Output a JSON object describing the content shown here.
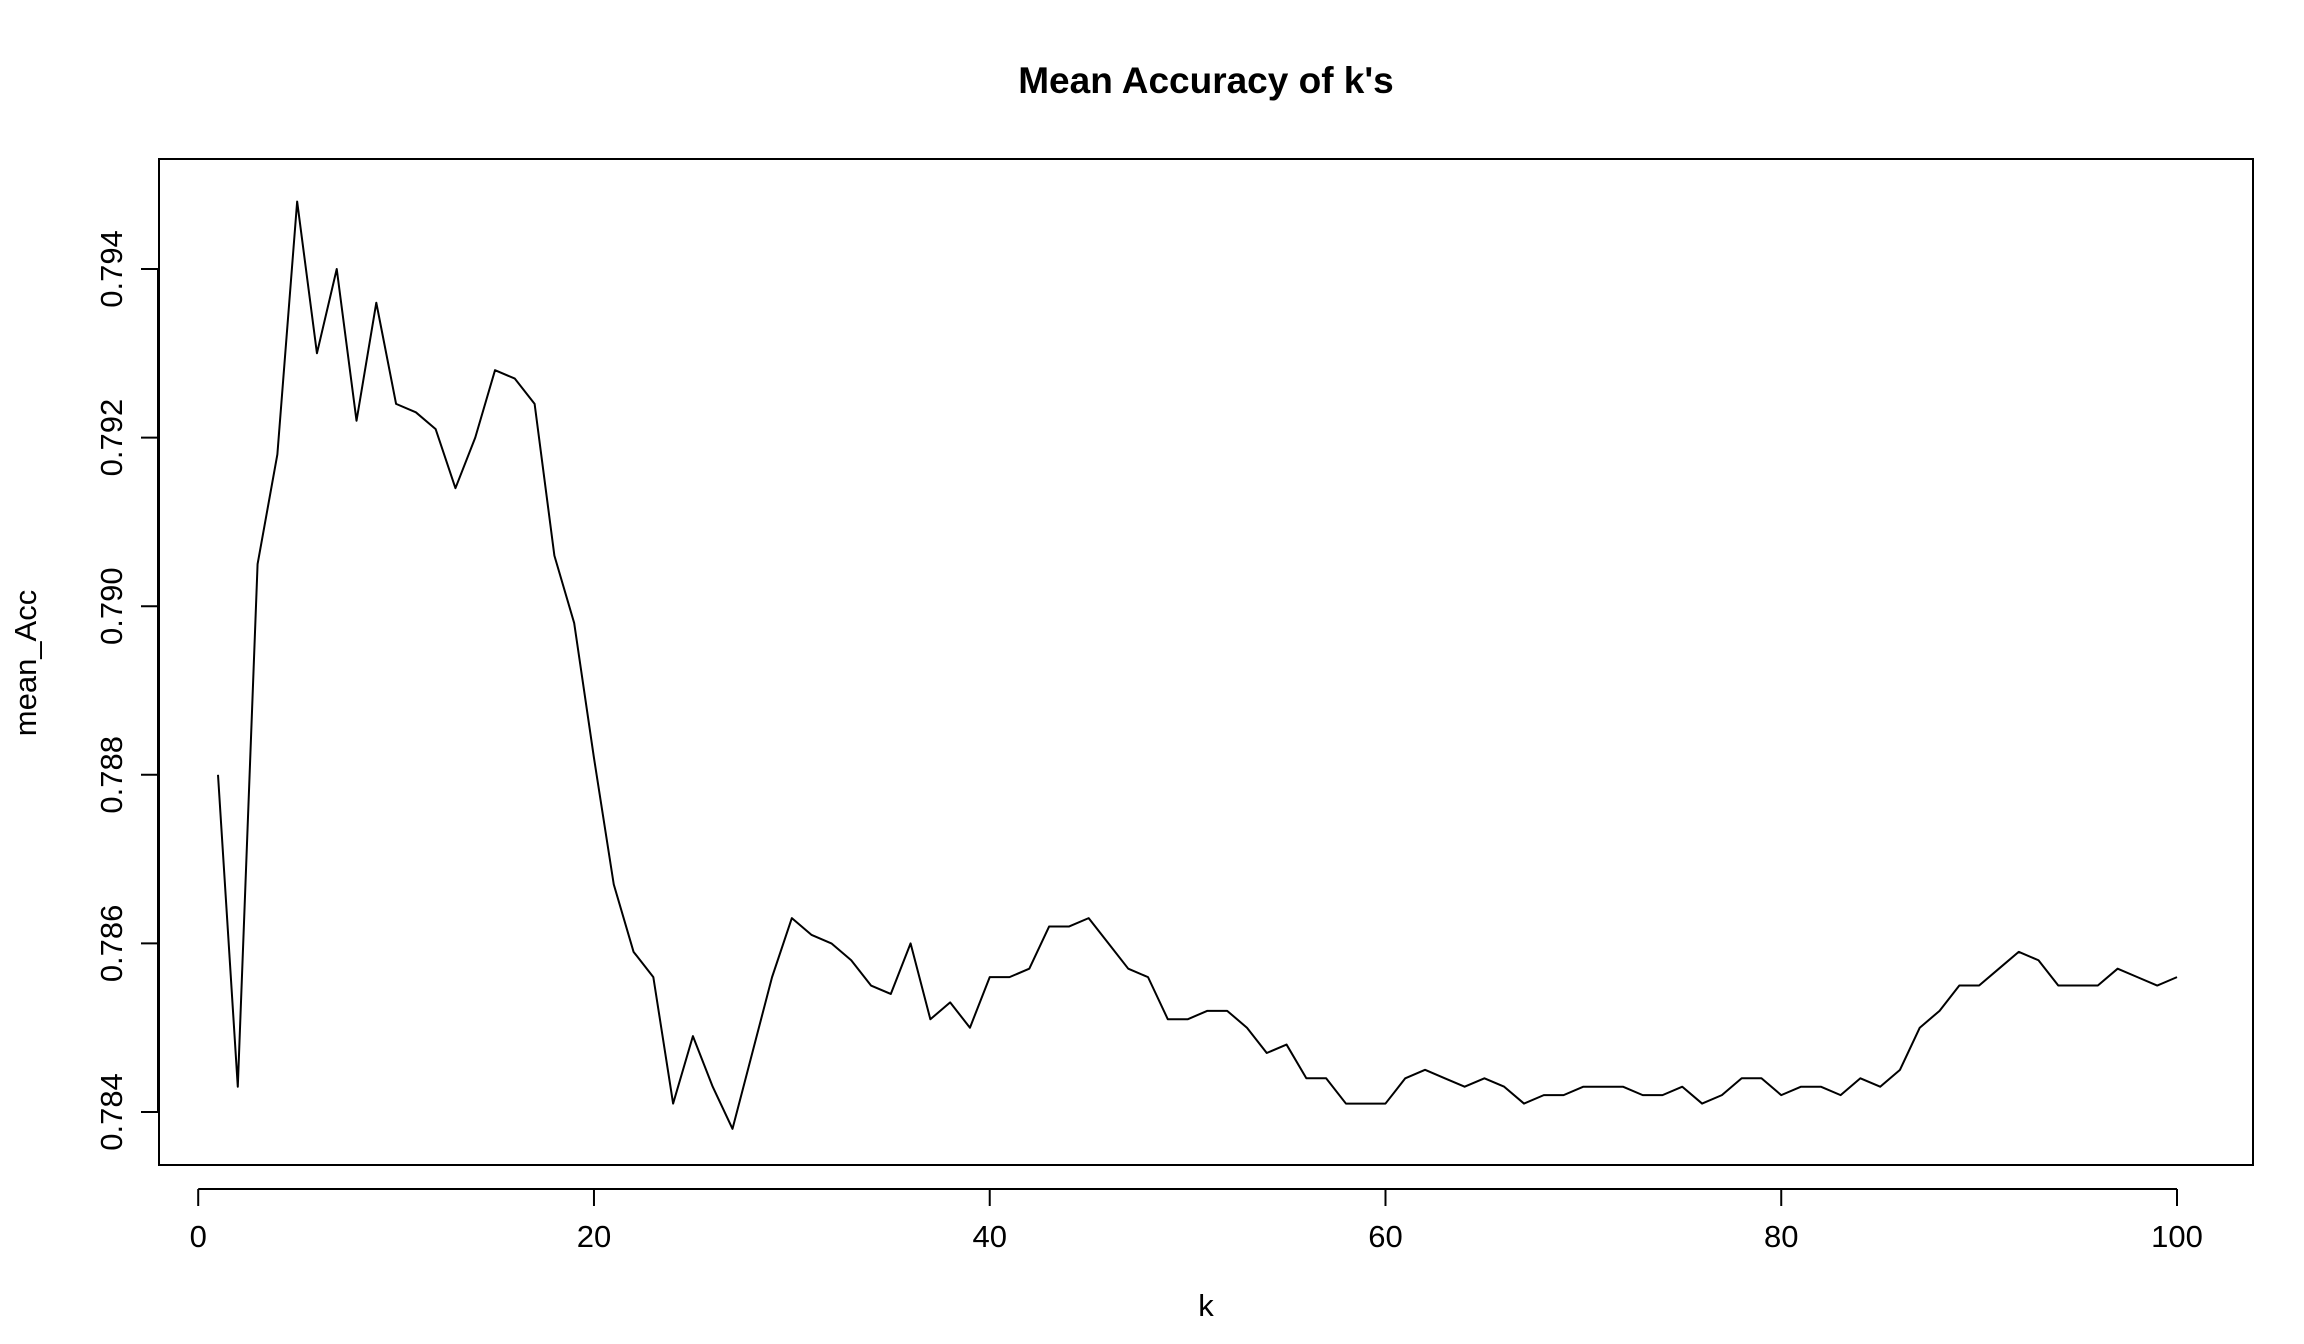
{
  "chart_data": {
    "type": "line",
    "title": "Mean Accuracy of k's",
    "xlabel": "k",
    "ylabel": "mean_Acc",
    "xlim": [
      1,
      100
    ],
    "ylim": [
      0.7838,
      0.7948
    ],
    "x_ticks": [
      0,
      20,
      40,
      60,
      80,
      100
    ],
    "x_tick_labels": [
      "0",
      "20",
      "40",
      "60",
      "80",
      "100"
    ],
    "y_ticks": [
      0.784,
      0.786,
      0.788,
      0.79,
      0.792,
      0.794
    ],
    "y_tick_labels": [
      "0.784",
      "0.786",
      "0.788",
      "0.790",
      "0.792",
      "0.794"
    ],
    "grid": false,
    "legend": "none",
    "line_color": "#000000",
    "series": [
      {
        "x": [
          1,
          2,
          3,
          4,
          5,
          6,
          7,
          8,
          9,
          10,
          11,
          12,
          13,
          14,
          15,
          16,
          17,
          18,
          19,
          20,
          21,
          22,
          23,
          24,
          25,
          26,
          27,
          28,
          29,
          30,
          31,
          32,
          33,
          34,
          35,
          36,
          37,
          38,
          39,
          40,
          41,
          42,
          43,
          44,
          45,
          46,
          47,
          48,
          49,
          50,
          51,
          52,
          53,
          54,
          55,
          56,
          57,
          58,
          59,
          60,
          61,
          62,
          63,
          64,
          65,
          66,
          67,
          68,
          69,
          70,
          71,
          72,
          73,
          74,
          75,
          76,
          77,
          78,
          79,
          80,
          81,
          82,
          83,
          84,
          85,
          86,
          87,
          88,
          89,
          90,
          91,
          92,
          93,
          94,
          95,
          96,
          97,
          98,
          99,
          100
        ],
        "values": [
          0.788,
          0.7843,
          0.7905,
          0.7918,
          0.7948,
          0.793,
          0.794,
          0.7922,
          0.7936,
          0.7924,
          0.7923,
          0.7921,
          0.7914,
          0.792,
          0.7928,
          0.7927,
          0.7924,
          0.7906,
          0.7898,
          0.7882,
          0.7867,
          0.7859,
          0.7856,
          0.7841,
          0.7849,
          0.7843,
          0.7838,
          0.7847,
          0.7856,
          0.7863,
          0.7861,
          0.786,
          0.7858,
          0.7855,
          0.7854,
          0.786,
          0.7851,
          0.7853,
          0.785,
          0.7856,
          0.7856,
          0.7857,
          0.7862,
          0.7862,
          0.7863,
          0.786,
          0.7857,
          0.7856,
          0.7851,
          0.7851,
          0.7852,
          0.7852,
          0.785,
          0.7847,
          0.7848,
          0.7844,
          0.7844,
          0.7841,
          0.7841,
          0.7841,
          0.7844,
          0.7845,
          0.7844,
          0.7843,
          0.7844,
          0.7843,
          0.7841,
          0.7842,
          0.7842,
          0.7843,
          0.7843,
          0.7843,
          0.7842,
          0.7842,
          0.7843,
          0.7841,
          0.7842,
          0.7844,
          0.7844,
          0.7842,
          0.7843,
          0.7843,
          0.7842,
          0.7844,
          0.7843,
          0.7845,
          0.785,
          0.7852,
          0.7855,
          0.7855,
          0.7857,
          0.7859,
          0.7858,
          0.7855,
          0.7855,
          0.7855,
          0.7857,
          0.7856,
          0.7855,
          0.7856
        ]
      }
    ]
  }
}
